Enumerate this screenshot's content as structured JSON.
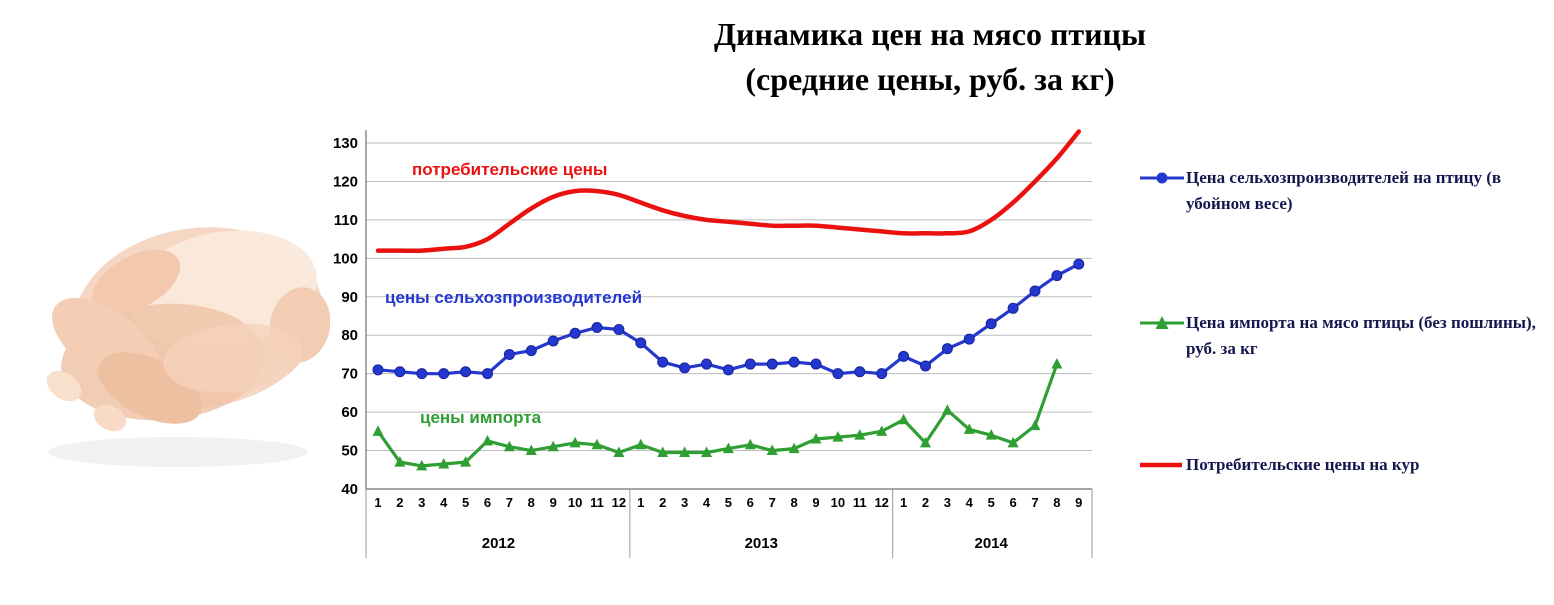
{
  "title": {
    "line1": "Динамика цен на мясо птицы",
    "line2": "(средние цены, руб. за кг)"
  },
  "chart_data": {
    "type": "line",
    "x_labels": [
      "1",
      "2",
      "3",
      "4",
      "5",
      "6",
      "7",
      "8",
      "9",
      "10",
      "11",
      "12",
      "1",
      "2",
      "3",
      "4",
      "5",
      "6",
      "7",
      "8",
      "9",
      "10",
      "11",
      "12",
      "1",
      "2",
      "3",
      "4",
      "5",
      "6",
      "7",
      "8",
      "9"
    ],
    "year_groups": [
      {
        "label": "2012",
        "count": 12
      },
      {
        "label": "2013",
        "count": 12
      },
      {
        "label": "2014",
        "count": 9
      }
    ],
    "ylim": [
      40,
      130
    ],
    "yticks": [
      40,
      50,
      60,
      70,
      80,
      90,
      100,
      110,
      120,
      130
    ],
    "grid": true,
    "legend_position": "right",
    "series": [
      {
        "name": "Потребительские цены на кур",
        "color": "#ea1210",
        "marker": "none",
        "values": [
          102,
          102,
          102,
          102.5,
          103,
          105,
          109,
          113,
          116,
          117.5,
          117.5,
          116.5,
          114.5,
          112.5,
          111,
          110,
          109.5,
          109,
          108.5,
          108.5,
          108.5,
          108,
          107.5,
          107,
          106.5,
          106.5,
          106.5,
          107,
          110,
          114.5,
          120,
          126,
          133
        ]
      },
      {
        "name": "Цена сельхозпроизводителей на птицу (в убойном весе)",
        "color": "#2438cf",
        "marker": "circle",
        "values": [
          71,
          70.5,
          70,
          70,
          70.5,
          70,
          75,
          76,
          78.5,
          80.5,
          82,
          81.5,
          78,
          73,
          71.5,
          72.5,
          71,
          72.5,
          72.5,
          73,
          72.5,
          70,
          70.5,
          70,
          74.5,
          72,
          76.5,
          79,
          83,
          87,
          91.5,
          95.5,
          98.5
        ]
      },
      {
        "name": "Цена импорта на мясо птицы (без пошлины), руб. за кг",
        "color": "#2f9e33",
        "marker": "triangle",
        "values": [
          55,
          47,
          46,
          46.5,
          47,
          52.5,
          51,
          50,
          51,
          52,
          51.5,
          49.5,
          51.5,
          49.5,
          49.5,
          49.5,
          50.5,
          51.5,
          50,
          50.5,
          53,
          53.5,
          54,
          55,
          58,
          52,
          60.5,
          55.5,
          54,
          52,
          56.5,
          72.5,
          null
        ]
      }
    ],
    "annotations": [
      {
        "text": "потребительские цены",
        "color": "#ea1210"
      },
      {
        "text": "цены сельхозпроизводителей",
        "color": "#2438cf"
      },
      {
        "text": "цены импорта",
        "color": "#2f9e33"
      }
    ]
  },
  "legend": {
    "items": [
      {
        "label": "Цена сельхозпроизводителей на птицу (в убойном весе)",
        "marker": "circle",
        "color": "#2438cf"
      },
      {
        "label": "Цена импорта на мясо птицы (без пошлины), руб. за кг",
        "marker": "triangle",
        "color": "#2f9e33"
      },
      {
        "label": "Потребительские цены на кур",
        "marker": "line",
        "color": "#ea1210"
      }
    ]
  }
}
